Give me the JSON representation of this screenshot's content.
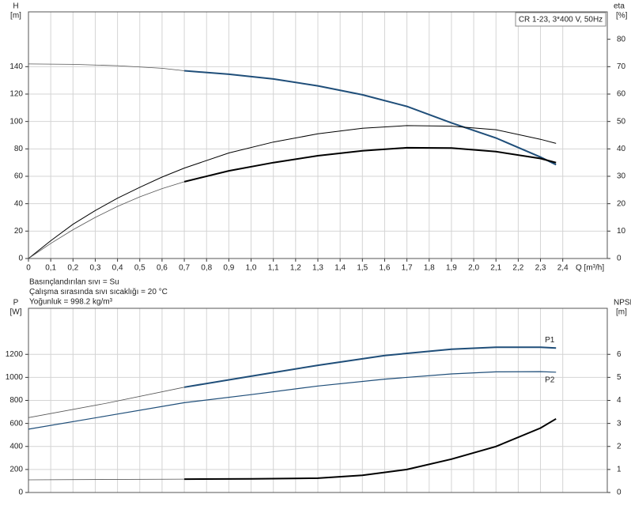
{
  "chart_data": [
    {
      "type": "line",
      "title": "CR 1-23, 3*400 V, 50Hz",
      "xlabel": "Q [m³/h]",
      "ylabel": "H",
      "yunit": "[m]",
      "y2label": "eta",
      "y2unit": "[%]",
      "annotations": [
        "Basınçlandırılan sıvı = Su",
        "Çalışma sırasında sıvı sıcaklığı = 20 °C",
        "Yoğunluk = 998.2 kg/m³"
      ],
      "xlim": [
        0,
        2.6
      ],
      "xticks": [
        0,
        {
          "value": 0.1,
          "label": "0,1"
        },
        {
          "value": 0.2,
          "label": "0,2"
        },
        {
          "value": 0.3,
          "label": "0,3"
        },
        {
          "value": 0.4,
          "label": "0,4"
        },
        {
          "value": 0.5,
          "label": "0,5"
        },
        {
          "value": 0.6,
          "label": "0,6"
        },
        {
          "value": 0.7,
          "label": "0,7"
        },
        {
          "value": 0.8,
          "label": "0,8"
        },
        {
          "value": 0.9,
          "label": "0,9"
        },
        {
          "value": 1.0,
          "label": "1,0"
        },
        {
          "value": 1.1,
          "label": "1,1"
        },
        {
          "value": 1.2,
          "label": "1,2"
        },
        {
          "value": 1.3,
          "label": "1,3"
        },
        {
          "value": 1.4,
          "label": "1,4"
        },
        {
          "value": 1.5,
          "label": "1,5"
        },
        {
          "value": 1.6,
          "label": "1,6"
        },
        {
          "value": 1.7,
          "label": "1,7"
        },
        {
          "value": 1.8,
          "label": "1,8"
        },
        {
          "value": 1.9,
          "label": "1,9"
        },
        {
          "value": 2.0,
          "label": "2,0"
        },
        {
          "value": 2.1,
          "label": "2,1"
        },
        {
          "value": 2.2,
          "label": "2,2"
        },
        {
          "value": 2.3,
          "label": "2,3"
        },
        {
          "value": 2.4,
          "label": "2,4"
        }
      ],
      "ylim": [
        0,
        180
      ],
      "yticks": [
        0,
        20,
        40,
        60,
        80,
        100,
        120,
        140
      ],
      "y2lim": [
        0,
        90
      ],
      "y2ticks": [
        0,
        10,
        20,
        30,
        40,
        50,
        60,
        70,
        80
      ],
      "grid": true,
      "series": [
        {
          "color": "#555555",
          "linewidth": 0.8,
          "x": [
            0,
            0.2,
            0.4,
            0.6,
            0.7
          ],
          "values": [
            142,
            141.7,
            140.7,
            138.8,
            137
          ]
        },
        {
          "color": "#1f4e79",
          "linewidth": 2,
          "x": [
            0.7,
            0.9,
            1.1,
            1.3,
            1.5,
            1.7,
            1.9,
            2.1,
            2.3,
            2.37
          ],
          "values": [
            137,
            134.5,
            131,
            126,
            119.5,
            111,
            99,
            88,
            74,
            68.5
          ]
        },
        {
          "color": "#000000",
          "linewidth": 1,
          "axis": "y2",
          "x": [
            0,
            0.1,
            0.2,
            0.3,
            0.4,
            0.5,
            0.6,
            0.7,
            0.9,
            1.1,
            1.3,
            1.5,
            1.7,
            1.9,
            2.1,
            2.3,
            2.37
          ],
          "values": [
            0,
            6.5,
            12.5,
            17.5,
            22,
            26,
            29.7,
            33,
            38.5,
            42.5,
            45.5,
            47.5,
            48.5,
            48.3,
            47,
            43.5,
            42
          ]
        },
        {
          "color": "#555555",
          "linewidth": 0.8,
          "axis": "y2",
          "x": [
            0,
            0.1,
            0.2,
            0.3,
            0.4,
            0.5,
            0.6,
            0.7
          ],
          "values": [
            0,
            5.5,
            10.5,
            15,
            19,
            22.5,
            25.5,
            28
          ]
        },
        {
          "color": "#000000",
          "linewidth": 2,
          "axis": "y2",
          "x": [
            0.7,
            0.9,
            1.1,
            1.3,
            1.5,
            1.7,
            1.9,
            2.1,
            2.3,
            2.37
          ],
          "values": [
            28,
            32,
            35,
            37.5,
            39.3,
            40.4,
            40.3,
            39,
            36.5,
            35
          ]
        }
      ]
    },
    {
      "type": "line",
      "ylabel": "P",
      "yunit": "[W]",
      "y2label": "NPSH",
      "y2unit": "[m]",
      "xlim": [
        0,
        2.6
      ],
      "ylim": [
        0,
        1600
      ],
      "yticks": [
        0,
        200,
        400,
        600,
        800,
        1000,
        1200
      ],
      "y2lim": [
        0,
        8
      ],
      "y2ticks": [
        0,
        1,
        2,
        3,
        4,
        5,
        6
      ],
      "grid": true,
      "series": [
        {
          "color": "#555555",
          "linewidth": 0.8,
          "x": [
            0,
            0.35,
            0.7
          ],
          "values": [
            650,
            775,
            915
          ]
        },
        {
          "name": "P1",
          "color": "#1f4e79",
          "linewidth": 2,
          "x": [
            0.7,
            1.0,
            1.3,
            1.6,
            1.9,
            2.1,
            2.3,
            2.37
          ],
          "values": [
            915,
            1010,
            1105,
            1190,
            1245,
            1262,
            1262,
            1255
          ]
        },
        {
          "name": "P2",
          "color": "#1f4e79",
          "linewidth": 1.2,
          "x": [
            0,
            0.35,
            0.7,
            1.0,
            1.3,
            1.6,
            1.9,
            2.1,
            2.3,
            2.37
          ],
          "values": [
            550,
            665,
            780,
            850,
            925,
            985,
            1030,
            1048,
            1050,
            1045
          ]
        },
        {
          "color": "#555555",
          "linewidth": 0.8,
          "axis": "y2",
          "x": [
            0,
            0.7
          ],
          "values": [
            0.55,
            0.58
          ]
        },
        {
          "color": "#000000",
          "linewidth": 2,
          "axis": "y2",
          "x": [
            0.7,
            1.0,
            1.3,
            1.5,
            1.7,
            1.9,
            2.1,
            2.3,
            2.37
          ],
          "values": [
            0.58,
            0.59,
            0.62,
            0.75,
            1.0,
            1.45,
            2.0,
            2.8,
            3.2
          ]
        }
      ]
    }
  ]
}
